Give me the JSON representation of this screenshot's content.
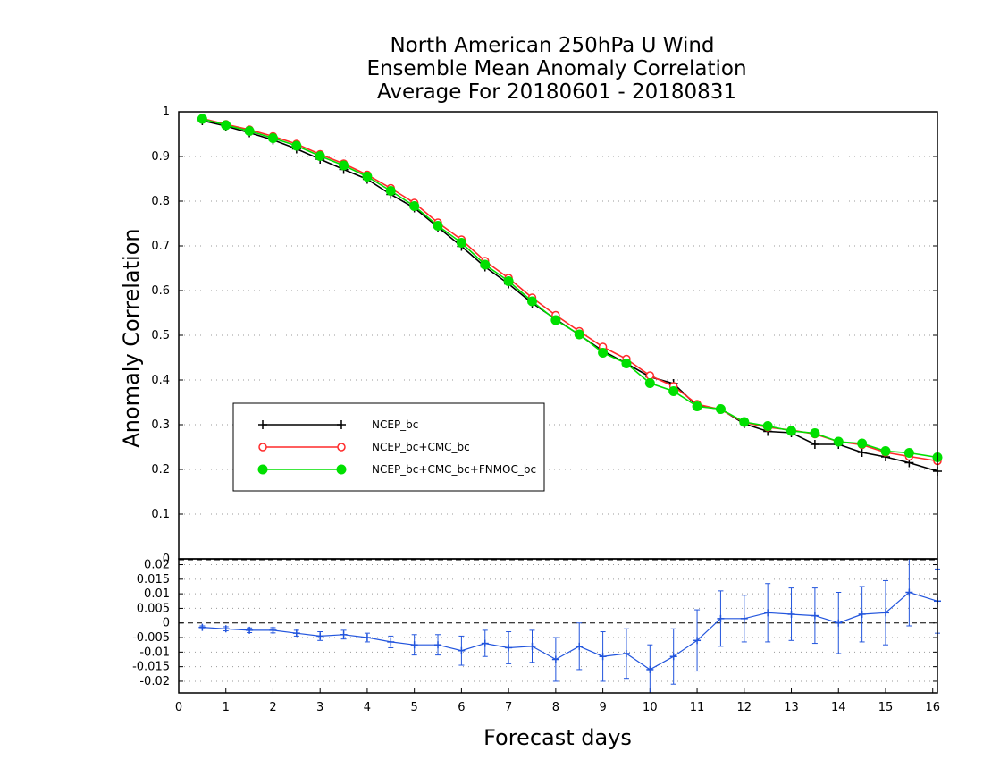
{
  "chart_data": [
    {
      "type": "line",
      "title": [
        "North American 250hPa U Wind",
        "Ensemble Mean Anomaly Correlation",
        "Average For 20180601 - 20180831"
      ],
      "ylabel": "Anomaly Correlation",
      "xlim": [
        0,
        16.1
      ],
      "ylim": [
        0,
        1
      ],
      "yticks": [
        "0",
        "0.1",
        "0.2",
        "0.3",
        "0.4",
        "0.5",
        "0.6",
        "0.7",
        "0.8",
        "0.9",
        "1"
      ],
      "grid": "horizontal dotted",
      "legend_position": "left",
      "x": [
        0.5,
        1,
        1.5,
        2,
        2.5,
        3,
        3.5,
        4,
        4.5,
        5,
        5.5,
        6,
        6.5,
        7,
        7.5,
        8,
        8.5,
        9,
        9.5,
        10,
        10.5,
        11,
        11.5,
        12,
        12.5,
        13,
        13.5,
        14,
        14.5,
        15,
        15.5,
        16.1
      ],
      "series": [
        {
          "name": "NCEP_bc",
          "color": "#000000",
          "marker": "plus",
          "values": [
            0.98,
            0.968,
            0.953,
            0.937,
            0.917,
            0.894,
            0.871,
            0.849,
            0.815,
            0.785,
            0.742,
            0.699,
            0.653,
            0.615,
            0.572,
            0.536,
            0.501,
            0.465,
            0.437,
            0.407,
            0.392,
            0.342,
            0.335,
            0.302,
            0.285,
            0.282,
            0.256,
            0.256,
            0.238,
            0.228,
            0.215,
            0.196
          ]
        },
        {
          "name": "NCEP_bc+CMC_bc",
          "color": "#ff2a2a",
          "marker": "open-circle",
          "values": [
            0.985,
            0.972,
            0.96,
            0.945,
            0.928,
            0.905,
            0.884,
            0.859,
            0.829,
            0.796,
            0.752,
            0.714,
            0.666,
            0.628,
            0.584,
            0.545,
            0.509,
            0.474,
            0.447,
            0.41,
            0.386,
            0.346,
            0.334,
            0.305,
            0.294,
            0.288,
            0.279,
            0.262,
            0.255,
            0.238,
            0.229,
            0.219
          ]
        },
        {
          "name": "NCEP_bc+CMC_bc+FNMOC_bc",
          "color": "#00e000",
          "marker": "filled-circle",
          "values": [
            0.984,
            0.97,
            0.957,
            0.941,
            0.924,
            0.901,
            0.88,
            0.855,
            0.823,
            0.789,
            0.745,
            0.707,
            0.658,
            0.621,
            0.576,
            0.534,
            0.502,
            0.461,
            0.437,
            0.393,
            0.375,
            0.341,
            0.335,
            0.306,
            0.297,
            0.286,
            0.281,
            0.262,
            0.258,
            0.241,
            0.237,
            0.227
          ]
        }
      ]
    },
    {
      "type": "line",
      "xlabel": "Forecast days",
      "xlim": [
        0,
        16.1
      ],
      "ylim": [
        -0.024,
        0.022
      ],
      "xticks": [
        "0",
        "1",
        "2",
        "3",
        "4",
        "5",
        "6",
        "7",
        "8",
        "9",
        "10",
        "11",
        "12",
        "13",
        "14",
        "15",
        "16"
      ],
      "yticks": [
        "-0.02",
        "-0.015",
        "-0.01",
        "-0.005",
        "0",
        "0.005",
        "0.01",
        "0.015",
        "0.02"
      ],
      "grid": "horizontal dotted",
      "reference_line": 0,
      "series": [
        {
          "color": "#2255dd",
          "marker": "plus",
          "error_bars": true,
          "x": [
            0.5,
            1,
            1.5,
            2,
            2.5,
            3,
            3.5,
            4,
            4.5,
            5,
            5.5,
            6,
            6.5,
            7,
            7.5,
            8,
            8.5,
            9,
            9.5,
            10,
            10.5,
            11,
            11.5,
            12,
            12.5,
            13,
            13.5,
            14,
            14.5,
            15,
            15.5,
            16.1
          ],
          "values": [
            -0.0015,
            -0.002,
            -0.0025,
            -0.0025,
            -0.0035,
            -0.0045,
            -0.004,
            -0.005,
            -0.0065,
            -0.0075,
            -0.0075,
            -0.0095,
            -0.007,
            -0.0085,
            -0.008,
            -0.0125,
            -0.008,
            -0.0115,
            -0.0105,
            -0.016,
            -0.0115,
            -0.006,
            0.0015,
            0.0015,
            0.0035,
            0.003,
            0.0025,
            0.0,
            0.003,
            0.0035,
            0.0105,
            0.0075
          ],
          "err": [
            0.0005,
            0.0007,
            0.0008,
            0.0009,
            0.001,
            0.0015,
            0.0015,
            0.0015,
            0.002,
            0.0035,
            0.0035,
            0.005,
            0.0045,
            0.0055,
            0.0055,
            0.0075,
            0.008,
            0.0085,
            0.0085,
            0.0085,
            0.0095,
            0.0105,
            0.0095,
            0.008,
            0.01,
            0.009,
            0.0095,
            0.0105,
            0.0095,
            0.011,
            0.0115,
            0.011
          ]
        }
      ]
    }
  ]
}
